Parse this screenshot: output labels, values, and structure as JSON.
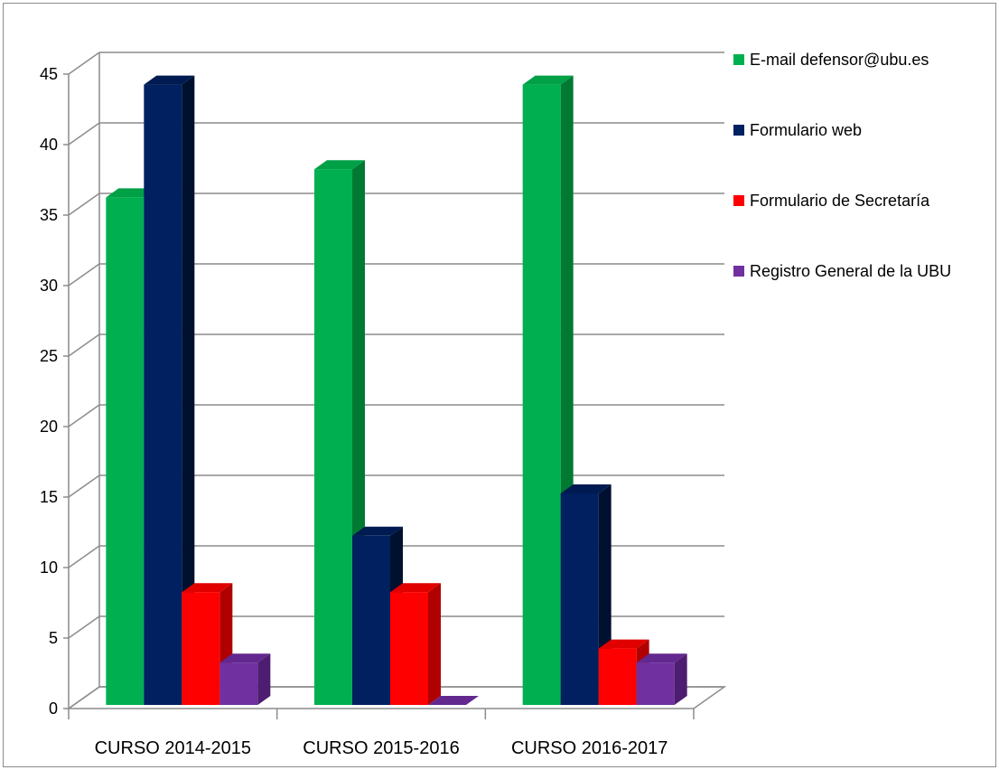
{
  "chart_data": {
    "type": "bar",
    "title": "",
    "xlabel": "",
    "ylabel": "",
    "categories": [
      "CURSO 2014-2015",
      "CURSO 2015-2016",
      "CURSO 2016-2017"
    ],
    "series": [
      {
        "name": "E-mail defensor@ubu.es",
        "values": [
          36,
          38,
          44
        ],
        "color": "#00b050",
        "top": "#00a046",
        "side": "#007a33"
      },
      {
        "name": "Formulario web",
        "values": [
          44,
          12,
          15
        ],
        "color": "#002060",
        "top": "#001a52",
        "side": "#00102f"
      },
      {
        "name": "Formulario de Secretaría",
        "values": [
          8,
          8,
          4
        ],
        "color": "#ff0000",
        "top": "#e00000",
        "side": "#b00000"
      },
      {
        "name": "Registro General de la UBU",
        "values": [
          3,
          0,
          3
        ],
        "color": "#7030a0",
        "top": "#63288f",
        "side": "#4c1d70"
      }
    ],
    "ylim": [
      0,
      45
    ],
    "yticks": [
      0,
      5,
      10,
      15,
      20,
      25,
      30,
      35,
      40,
      45
    ],
    "grid": true,
    "legend": "right",
    "style": "3d-clustered-column"
  }
}
